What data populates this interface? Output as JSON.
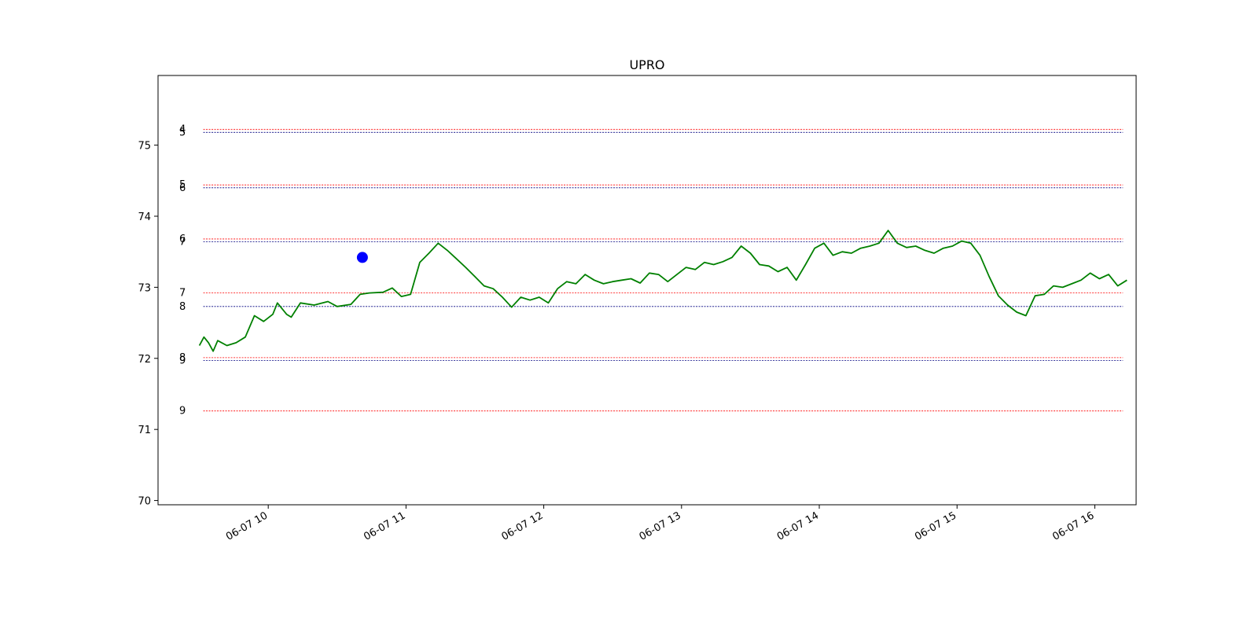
{
  "chart_data": {
    "type": "line",
    "title": "UPRO",
    "xlabel": "",
    "ylabel": "",
    "x_range": [
      "06-07 09:12",
      "06-07 16:18"
    ],
    "ylim": [
      69.94,
      75.98
    ],
    "x_ticks": [
      "06-07 10",
      "06-07 11",
      "06-07 12",
      "06-07 13",
      "06-07 14",
      "06-07 15",
      "06-07 16"
    ],
    "x_tick_times": [
      "06-07 10:00",
      "06-07 11:00",
      "06-07 12:00",
      "06-07 13:00",
      "06-07 14:00",
      "06-07 15:00",
      "06-07 16:00"
    ],
    "y_ticks": [
      70,
      71,
      72,
      73,
      74,
      75
    ],
    "grid": false,
    "colors": {
      "price": "#008000",
      "marker": "#0000ff",
      "level_red": "#ff0000",
      "level_blue": "#000080"
    },
    "series": [
      {
        "points": [
          [
            "06-07 09:30",
            72.18
          ],
          [
            "06-07 09:32",
            72.3
          ],
          [
            "06-07 09:34",
            72.22
          ],
          [
            "06-07 09:36",
            72.1
          ],
          [
            "06-07 09:38",
            72.25
          ],
          [
            "06-07 09:42",
            72.18
          ],
          [
            "06-07 09:46",
            72.22
          ],
          [
            "06-07 09:50",
            72.3
          ],
          [
            "06-07 09:54",
            72.6
          ],
          [
            "06-07 09:58",
            72.52
          ],
          [
            "06-07 10:02",
            72.62
          ],
          [
            "06-07 10:04",
            72.78
          ],
          [
            "06-07 10:08",
            72.62
          ],
          [
            "06-07 10:10",
            72.58
          ],
          [
            "06-07 10:14",
            72.78
          ],
          [
            "06-07 10:20",
            72.75
          ],
          [
            "06-07 10:26",
            72.8
          ],
          [
            "06-07 10:30",
            72.73
          ],
          [
            "06-07 10:36",
            72.76
          ],
          [
            "06-07 10:40",
            72.9
          ],
          [
            "06-07 10:44",
            72.92
          ],
          [
            "06-07 10:50",
            72.93
          ],
          [
            "06-07 10:54",
            72.99
          ],
          [
            "06-07 10:58",
            72.87
          ],
          [
            "06-07 11:02",
            72.9
          ],
          [
            "06-07 11:06",
            73.35
          ],
          [
            "06-07 11:10",
            73.48
          ],
          [
            "06-07 11:14",
            73.62
          ],
          [
            "06-07 11:18",
            73.52
          ],
          [
            "06-07 11:22",
            73.4
          ],
          [
            "06-07 11:26",
            73.28
          ],
          [
            "06-07 11:30",
            73.15
          ],
          [
            "06-07 11:34",
            73.02
          ],
          [
            "06-07 11:38",
            72.98
          ],
          [
            "06-07 11:42",
            72.86
          ],
          [
            "06-07 11:46",
            72.72
          ],
          [
            "06-07 11:50",
            72.86
          ],
          [
            "06-07 11:54",
            72.82
          ],
          [
            "06-07 11:58",
            72.86
          ],
          [
            "06-07 12:02",
            72.78
          ],
          [
            "06-07 12:06",
            72.98
          ],
          [
            "06-07 12:10",
            73.08
          ],
          [
            "06-07 12:14",
            73.05
          ],
          [
            "06-07 12:18",
            73.18
          ],
          [
            "06-07 12:22",
            73.1
          ],
          [
            "06-07 12:26",
            73.05
          ],
          [
            "06-07 12:30",
            73.08
          ],
          [
            "06-07 12:34",
            73.1
          ],
          [
            "06-07 12:38",
            73.12
          ],
          [
            "06-07 12:42",
            73.06
          ],
          [
            "06-07 12:46",
            73.2
          ],
          [
            "06-07 12:50",
            73.18
          ],
          [
            "06-07 12:54",
            73.08
          ],
          [
            "06-07 12:58",
            73.18
          ],
          [
            "06-07 13:02",
            73.28
          ],
          [
            "06-07 13:06",
            73.25
          ],
          [
            "06-07 13:10",
            73.35
          ],
          [
            "06-07 13:14",
            73.32
          ],
          [
            "06-07 13:18",
            73.36
          ],
          [
            "06-07 13:22",
            73.42
          ],
          [
            "06-07 13:26",
            73.58
          ],
          [
            "06-07 13:30",
            73.48
          ],
          [
            "06-07 13:34",
            73.32
          ],
          [
            "06-07 13:38",
            73.3
          ],
          [
            "06-07 13:42",
            73.22
          ],
          [
            "06-07 13:46",
            73.28
          ],
          [
            "06-07 13:50",
            73.1
          ],
          [
            "06-07 13:54",
            73.32
          ],
          [
            "06-07 13:58",
            73.55
          ],
          [
            "06-07 14:02",
            73.62
          ],
          [
            "06-07 14:06",
            73.45
          ],
          [
            "06-07 14:10",
            73.5
          ],
          [
            "06-07 14:14",
            73.48
          ],
          [
            "06-07 14:18",
            73.55
          ],
          [
            "06-07 14:22",
            73.58
          ],
          [
            "06-07 14:26",
            73.62
          ],
          [
            "06-07 14:30",
            73.8
          ],
          [
            "06-07 14:34",
            73.62
          ],
          [
            "06-07 14:38",
            73.56
          ],
          [
            "06-07 14:42",
            73.58
          ],
          [
            "06-07 14:46",
            73.52
          ],
          [
            "06-07 14:50",
            73.48
          ],
          [
            "06-07 14:54",
            73.55
          ],
          [
            "06-07 14:58",
            73.58
          ],
          [
            "06-07 15:02",
            73.65
          ],
          [
            "06-07 15:06",
            73.62
          ],
          [
            "06-07 15:10",
            73.45
          ],
          [
            "06-07 15:14",
            73.15
          ],
          [
            "06-07 15:18",
            72.88
          ],
          [
            "06-07 15:22",
            72.75
          ],
          [
            "06-07 15:26",
            72.65
          ],
          [
            "06-07 15:30",
            72.6
          ],
          [
            "06-07 15:34",
            72.88
          ],
          [
            "06-07 15:38",
            72.9
          ],
          [
            "06-07 15:42",
            73.02
          ],
          [
            "06-07 15:46",
            73.0
          ],
          [
            "06-07 15:50",
            73.05
          ],
          [
            "06-07 15:54",
            73.1
          ],
          [
            "06-07 15:58",
            73.2
          ],
          [
            "06-07 16:02",
            73.12
          ],
          [
            "06-07 16:06",
            73.18
          ],
          [
            "06-07 16:10",
            73.02
          ],
          [
            "06-07 16:14",
            73.1
          ]
        ]
      }
    ],
    "marker": {
      "x": "06-07 10:41",
      "y": 73.42
    },
    "levels": [
      {
        "label": "4",
        "y": 75.22,
        "color": "red"
      },
      {
        "label": "5",
        "y": 75.18,
        "color": "blue"
      },
      {
        "label": "5",
        "y": 74.44,
        "color": "red"
      },
      {
        "label": "6",
        "y": 74.4,
        "color": "blue"
      },
      {
        "label": "6",
        "y": 73.68,
        "color": "red"
      },
      {
        "label": "7",
        "y": 73.64,
        "color": "blue"
      },
      {
        "label": "7",
        "y": 72.92,
        "color": "red"
      },
      {
        "label": "8",
        "y": 72.73,
        "color": "blue"
      },
      {
        "label": "8",
        "y": 72.01,
        "color": "red"
      },
      {
        "label": "9",
        "y": 71.97,
        "color": "blue"
      },
      {
        "label": "9",
        "y": 71.26,
        "color": "red"
      }
    ]
  }
}
